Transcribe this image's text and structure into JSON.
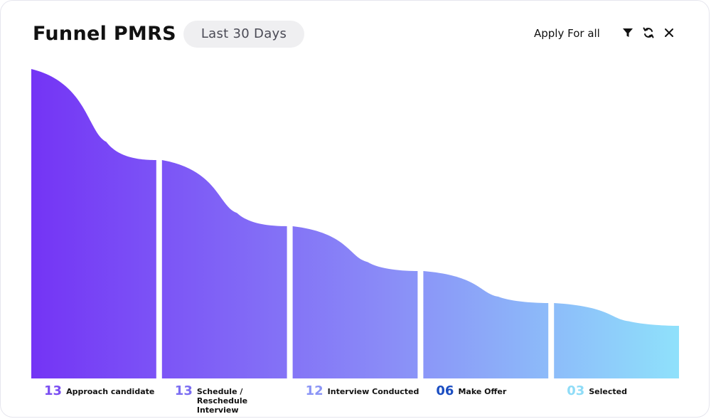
{
  "header": {
    "title": "Funnel PMRS",
    "range": "Last 30 Days",
    "apply_label": "Apply For all"
  },
  "icons": {
    "filter": "filter-icon",
    "refresh": "refresh-icon",
    "close": "close-icon"
  },
  "colors": {
    "gradient_start": "#7434f5",
    "gradient_mid": "#8a8cf7",
    "gradient_end": "#8fe1fb",
    "count_colors": [
      "#7b4ff2",
      "#7c6ef2",
      "#8b95f6",
      "#1b4ec2",
      "#8fdcf7"
    ]
  },
  "chart_data": {
    "type": "area",
    "categories": [
      "Approach candidate",
      "Schedule / Reschedule Interview",
      "Interview Conducted",
      "Make Offer",
      "Selected"
    ],
    "counts": [
      "13",
      "13",
      "12",
      "06",
      "03"
    ],
    "values": [
      13,
      13,
      12,
      6,
      3
    ]
  }
}
